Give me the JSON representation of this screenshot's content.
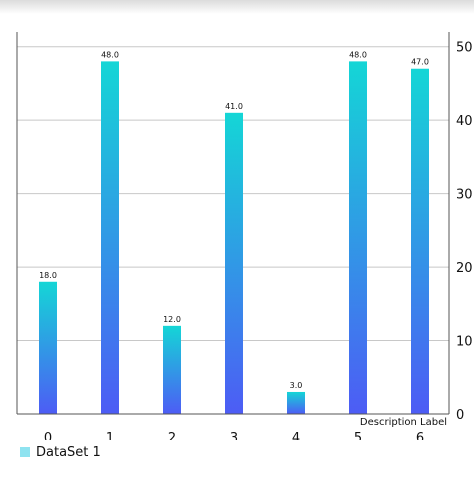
{
  "chart_data": {
    "type": "bar",
    "categories": [
      "0",
      "1",
      "2",
      "3",
      "4",
      "5",
      "6"
    ],
    "series": [
      {
        "name": "DataSet 1",
        "values": [
          18.0,
          48.0,
          12.0,
          41.0,
          3.0,
          48.0,
          47.0
        ]
      }
    ],
    "value_labels": [
      "18.0",
      "48.0",
      "12.0",
      "41.0",
      "3.0",
      "48.0",
      "47.0"
    ],
    "y_ticks": [
      "0",
      "10",
      "20",
      "30",
      "40",
      "50"
    ],
    "ylim": [
      0,
      52
    ],
    "y_axis_side": "right",
    "x_axis_side": "bottom",
    "grid": true,
    "legend_position": "bottom-left",
    "description": "Description Label",
    "colors": {
      "bar_top": "#14d6d6",
      "bar_bottom": "#4d5cf5",
      "legend_swatch": "#8fe3f0",
      "grid": "#c8c8c8",
      "axis": "#555555"
    }
  }
}
